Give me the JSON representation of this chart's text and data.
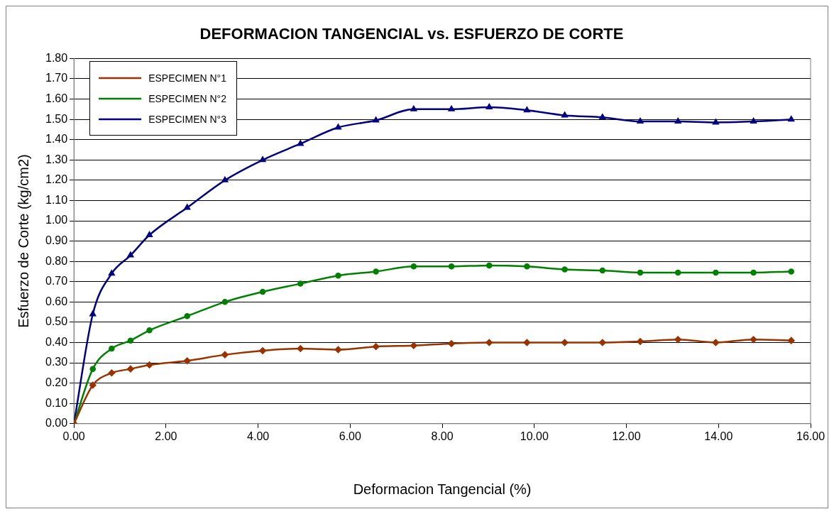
{
  "chart_data": {
    "type": "line",
    "title": "DEFORMACION TANGENCIAL vs. ESFUERZO DE CORTE",
    "xlabel": "Deformacion Tangencial (%)",
    "ylabel": "Esfuerzo de Corte (kg/cm2)",
    "x": [
      0,
      0.41,
      0.82,
      1.23,
      1.64,
      2.46,
      3.28,
      4.1,
      4.92,
      5.74,
      6.56,
      7.38,
      8.2,
      9.02,
      9.84,
      10.66,
      11.48,
      12.3,
      13.12,
      13.94,
      14.76,
      15.58
    ],
    "series": [
      {
        "name": "ESPECIMEN N°1",
        "color": "#993300",
        "marker": "diamond",
        "values": [
          0,
          0.19,
          0.25,
          0.27,
          0.29,
          0.31,
          0.34,
          0.36,
          0.37,
          0.365,
          0.38,
          0.385,
          0.395,
          0.4,
          0.4,
          0.4,
          0.4,
          0.405,
          0.415,
          0.4,
          0.415,
          0.41
        ]
      },
      {
        "name": "ESPECIMEN N°2",
        "color": "#008000",
        "marker": "circle",
        "values": [
          0,
          0.27,
          0.37,
          0.41,
          0.46,
          0.53,
          0.6,
          0.65,
          0.69,
          0.73,
          0.75,
          0.775,
          0.775,
          0.78,
          0.775,
          0.76,
          0.755,
          0.745,
          0.745,
          0.745,
          0.745,
          0.75
        ]
      },
      {
        "name": "ESPECIMEN N°3",
        "color": "#000080",
        "marker": "triangle",
        "values": [
          0,
          0.54,
          0.74,
          0.83,
          0.93,
          1.065,
          1.2,
          1.3,
          1.38,
          1.46,
          1.495,
          1.55,
          1.55,
          1.56,
          1.545,
          1.52,
          1.51,
          1.49,
          1.49,
          1.485,
          1.49,
          1.5
        ]
      }
    ],
    "xlim": [
      0,
      16
    ],
    "xticks": [
      {
        "value": 0,
        "label": "0.00"
      },
      {
        "value": 2,
        "label": "2.00"
      },
      {
        "value": 4,
        "label": "4.00"
      },
      {
        "value": 6,
        "label": "6.00"
      },
      {
        "value": 8,
        "label": "8.00"
      },
      {
        "value": 10,
        "label": "10.00"
      },
      {
        "value": 12,
        "label": "12.00"
      },
      {
        "value": 14,
        "label": "14.00"
      },
      {
        "value": 16,
        "label": "16.00"
      }
    ],
    "ylim": [
      0,
      1.8
    ],
    "yticks": [
      {
        "value": 0,
        "label": "0.00"
      },
      {
        "value": 0.1,
        "label": "0.10"
      },
      {
        "value": 0.2,
        "label": "0.20"
      },
      {
        "value": 0.3,
        "label": "0.30"
      },
      {
        "value": 0.4,
        "label": "0.40"
      },
      {
        "value": 0.5,
        "label": "0.50"
      },
      {
        "value": 0.6,
        "label": "0.60"
      },
      {
        "value": 0.7,
        "label": "0.70"
      },
      {
        "value": 0.8,
        "label": "0.80"
      },
      {
        "value": 0.9,
        "label": "0.90"
      },
      {
        "value": 1.0,
        "label": "1.00"
      },
      {
        "value": 1.1,
        "label": "1.10"
      },
      {
        "value": 1.2,
        "label": "1.20"
      },
      {
        "value": 1.3,
        "label": "1.30"
      },
      {
        "value": 1.4,
        "label": "1.40"
      },
      {
        "value": 1.5,
        "label": "1.50"
      },
      {
        "value": 1.6,
        "label": "1.60"
      },
      {
        "value": 1.7,
        "label": "1.70"
      },
      {
        "value": 1.8,
        "label": "1.80"
      }
    ],
    "grid": "y",
    "legend": "top left",
    "line_style": "solid"
  }
}
